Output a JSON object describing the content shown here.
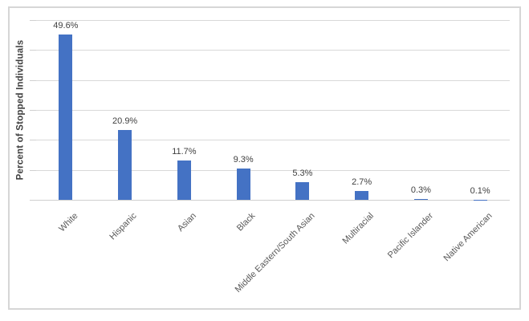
{
  "chart_data": {
    "type": "bar",
    "title": "",
    "categories": [
      "White",
      "Hispanic",
      "Asian",
      "Black",
      "Middle Eastern/South Asian",
      "Multiracial",
      "Pacific Islander",
      "Native American"
    ],
    "values": [
      49.6,
      20.9,
      11.7,
      9.3,
      5.3,
      2.7,
      0.3,
      0.1
    ],
    "data_labels": [
      "49.6%",
      "20.9%",
      "11.7%",
      "9.3%",
      "5.3%",
      "2.7%",
      "0.3%",
      "0.1%"
    ],
    "xlabel": "",
    "ylabel": "Percent of Stopped Individuals",
    "ylim": [
      0,
      54
    ],
    "grid": true,
    "gridline_interval": 9,
    "legend_position": "none",
    "x_tick_rotation_deg": 45,
    "y_tick_labels_visible": false
  },
  "colors": {
    "bar": "#4472C4",
    "grid": "#D9D9D9",
    "axis": "#D0D0D0",
    "data_label": "#404040",
    "category_label": "#595959",
    "axis_title": "#404040",
    "frame_border": "#D6D6D6",
    "background": "#FFFFFF"
  }
}
